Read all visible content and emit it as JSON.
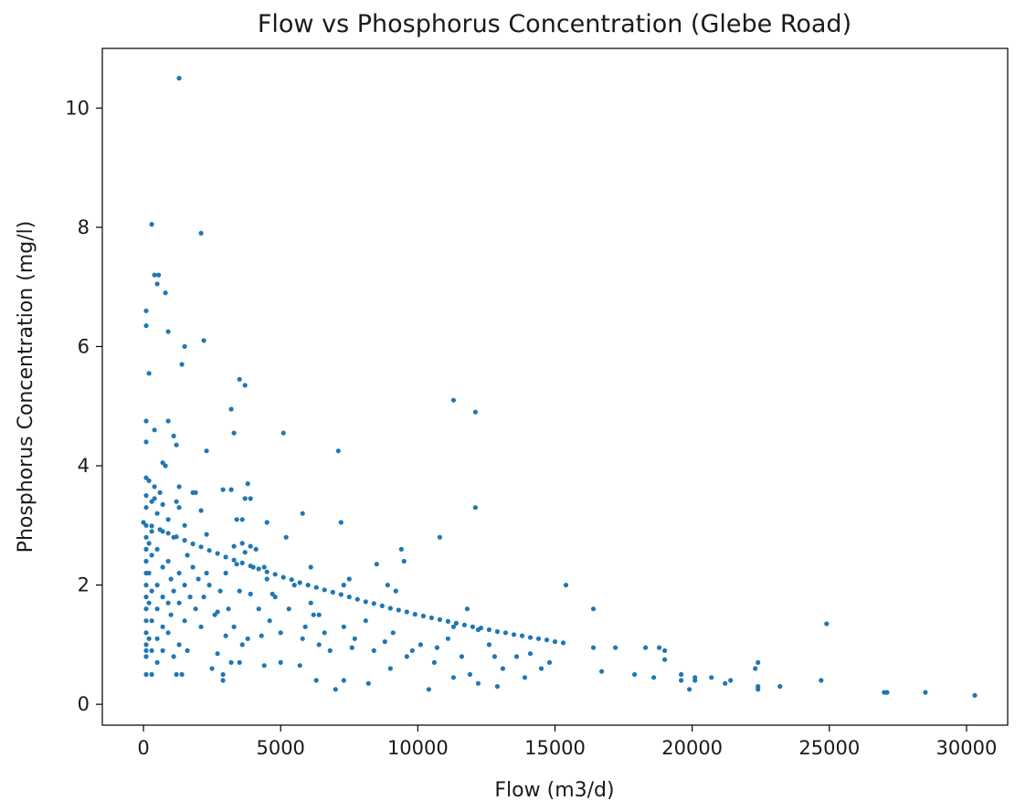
{
  "chart_data": {
    "type": "scatter",
    "title": "Flow vs Phosphorus Concentration (Glebe Road)",
    "xlabel": "Flow (m3/d)",
    "ylabel": "Phosphorus Concentration (mg/l)",
    "xlim": [
      -1500,
      31500
    ],
    "ylim": [
      -0.35,
      11.0
    ],
    "xticks": [
      0,
      5000,
      10000,
      15000,
      20000,
      25000,
      30000
    ],
    "yticks": [
      0,
      2,
      4,
      6,
      8,
      10
    ],
    "grid": false,
    "marker_color": "#1f77b4",
    "series": [
      {
        "points": [
          [
            1300,
            10.5
          ],
          [
            300,
            8.05
          ],
          [
            2100,
            7.9
          ],
          [
            400,
            7.2
          ],
          [
            550,
            7.2
          ],
          [
            500,
            7.05
          ],
          [
            800,
            6.9
          ],
          [
            100,
            6.6
          ],
          [
            100,
            6.35
          ],
          [
            900,
            6.25
          ],
          [
            2200,
            6.1
          ],
          [
            1500,
            6.0
          ],
          [
            1400,
            5.7
          ],
          [
            200,
            5.55
          ],
          [
            3500,
            5.45
          ],
          [
            3700,
            5.35
          ],
          [
            11300,
            5.1
          ],
          [
            3200,
            4.95
          ],
          [
            12100,
            4.9
          ],
          [
            900,
            4.75
          ],
          [
            100,
            4.75
          ],
          [
            400,
            4.6
          ],
          [
            1100,
            4.5
          ],
          [
            3300,
            4.55
          ],
          [
            5100,
            4.55
          ],
          [
            1200,
            4.35
          ],
          [
            100,
            4.4
          ],
          [
            7100,
            4.25
          ],
          [
            2300,
            4.25
          ],
          [
            700,
            4.05
          ],
          [
            800,
            4.0
          ],
          [
            100,
            3.8
          ],
          [
            200,
            3.75
          ],
          [
            3800,
            3.7
          ],
          [
            400,
            3.65
          ],
          [
            1300,
            3.65
          ],
          [
            2900,
            3.6
          ],
          [
            3200,
            3.6
          ],
          [
            600,
            3.55
          ],
          [
            1800,
            3.55
          ],
          [
            1900,
            3.55
          ],
          [
            100,
            3.5
          ],
          [
            400,
            3.45
          ],
          [
            1200,
            3.4
          ],
          [
            3700,
            3.45
          ],
          [
            3900,
            3.45
          ],
          [
            700,
            3.35
          ],
          [
            12100,
            3.3
          ],
          [
            100,
            3.3
          ],
          [
            2100,
            3.25
          ],
          [
            5800,
            3.2
          ],
          [
            3400,
            3.1
          ],
          [
            3600,
            3.1
          ],
          [
            7200,
            3.05
          ],
          [
            1500,
            3.0
          ],
          [
            4500,
            3.05
          ],
          [
            2300,
            2.85
          ],
          [
            10800,
            2.8
          ],
          [
            5200,
            2.8
          ],
          [
            3300,
            2.65
          ],
          [
            3900,
            2.65
          ],
          [
            4100,
            2.6
          ],
          [
            9400,
            2.6
          ],
          [
            3700,
            2.55
          ],
          [
            9500,
            2.4
          ],
          [
            8500,
            2.35
          ],
          [
            3400,
            2.35
          ],
          [
            4000,
            2.3
          ],
          [
            2300,
            2.2
          ],
          [
            6100,
            2.3
          ],
          [
            4500,
            2.1
          ],
          [
            7500,
            2.1
          ],
          [
            7300,
            2.0
          ],
          [
            8900,
            2.0
          ],
          [
            9200,
            1.9
          ],
          [
            15400,
            2.0
          ],
          [
            3900,
            1.85
          ],
          [
            4700,
            1.85
          ],
          [
            11800,
            1.6
          ],
          [
            2700,
            1.55
          ],
          [
            6200,
            1.5
          ],
          [
            6400,
            1.5
          ],
          [
            7300,
            1.3
          ],
          [
            16400,
            1.6
          ],
          [
            24900,
            1.35
          ],
          [
            11300,
            1.3
          ],
          [
            12200,
            1.25
          ],
          [
            4300,
            1.15
          ],
          [
            3000,
            1.15
          ],
          [
            5800,
            1.1
          ],
          [
            8800,
            1.05
          ],
          [
            11100,
            1.1
          ],
          [
            10700,
            0.95
          ],
          [
            6400,
            1.0
          ],
          [
            7600,
            0.95
          ],
          [
            9800,
            0.9
          ],
          [
            2700,
            0.85
          ],
          [
            3600,
            1.0
          ],
          [
            16400,
            0.95
          ],
          [
            17200,
            0.95
          ],
          [
            18300,
            0.95
          ],
          [
            18800,
            0.95
          ],
          [
            19000,
            0.9
          ],
          [
            19000,
            0.75
          ],
          [
            13600,
            0.8
          ],
          [
            14100,
            0.85
          ],
          [
            12800,
            0.8
          ],
          [
            11900,
            0.5
          ],
          [
            11300,
            0.45
          ],
          [
            12200,
            0.35
          ],
          [
            10400,
            0.25
          ],
          [
            9000,
            0.6
          ],
          [
            8200,
            0.35
          ],
          [
            7000,
            0.25
          ],
          [
            7300,
            0.4
          ],
          [
            6300,
            0.4
          ],
          [
            5700,
            0.65
          ],
          [
            5000,
            0.7
          ],
          [
            4400,
            0.65
          ],
          [
            3200,
            0.7
          ],
          [
            3500,
            0.7
          ],
          [
            2900,
            0.5
          ],
          [
            2900,
            0.4
          ],
          [
            2500,
            0.6
          ],
          [
            1400,
            0.5
          ],
          [
            1200,
            0.5
          ],
          [
            300,
            0.5
          ],
          [
            100,
            0.5
          ],
          [
            16700,
            0.55
          ],
          [
            17900,
            0.5
          ],
          [
            18600,
            0.45
          ],
          [
            19600,
            0.5
          ],
          [
            19600,
            0.4
          ],
          [
            19900,
            0.25
          ],
          [
            20100,
            0.4
          ],
          [
            20100,
            0.45
          ],
          [
            20700,
            0.45
          ],
          [
            21200,
            0.35
          ],
          [
            21400,
            0.4
          ],
          [
            22300,
            0.6
          ],
          [
            22400,
            0.7
          ],
          [
            22400,
            0.3
          ],
          [
            22400,
            0.25
          ],
          [
            23200,
            0.3
          ],
          [
            24700,
            0.4
          ],
          [
            27000,
            0.2
          ],
          [
            27100,
            0.2
          ],
          [
            28500,
            0.2
          ],
          [
            30300,
            0.15
          ],
          [
            12900,
            0.3
          ],
          [
            13900,
            0.45
          ],
          [
            14800,
            0.7
          ],
          [
            100,
            3.0
          ],
          [
            100,
            2.8
          ],
          [
            100,
            2.6
          ],
          [
            100,
            2.4
          ],
          [
            100,
            2.2
          ],
          [
            100,
            2.0
          ],
          [
            100,
            1.8
          ],
          [
            100,
            1.6
          ],
          [
            100,
            1.4
          ],
          [
            100,
            1.2
          ],
          [
            100,
            1.0
          ],
          [
            100,
            0.9
          ],
          [
            100,
            0.8
          ],
          [
            200,
            2.7
          ],
          [
            200,
            2.2
          ],
          [
            200,
            1.7
          ],
          [
            200,
            1.1
          ],
          [
            300,
            3.4
          ],
          [
            300,
            2.9
          ],
          [
            300,
            2.5
          ],
          [
            300,
            1.9
          ],
          [
            300,
            1.4
          ],
          [
            300,
            0.9
          ],
          [
            500,
            3.2
          ],
          [
            500,
            2.6
          ],
          [
            500,
            2.0
          ],
          [
            500,
            1.6
          ],
          [
            500,
            1.1
          ],
          [
            500,
            0.7
          ],
          [
            700,
            2.9
          ],
          [
            700,
            2.3
          ],
          [
            700,
            1.8
          ],
          [
            700,
            1.3
          ],
          [
            700,
            0.9
          ],
          [
            900,
            3.1
          ],
          [
            900,
            2.4
          ],
          [
            900,
            1.7
          ],
          [
            900,
            1.2
          ],
          [
            1000,
            2.1
          ],
          [
            1000,
            1.5
          ],
          [
            1100,
            2.8
          ],
          [
            1100,
            1.9
          ],
          [
            1100,
            0.8
          ],
          [
            1300,
            3.3
          ],
          [
            1300,
            2.2
          ],
          [
            1300,
            1.7
          ],
          [
            1300,
            1.0
          ],
          [
            1500,
            2.0
          ],
          [
            1500,
            1.4
          ],
          [
            1600,
            2.5
          ],
          [
            1600,
            0.9
          ],
          [
            1700,
            1.8
          ],
          [
            1800,
            2.3
          ],
          [
            1900,
            1.6
          ],
          [
            2000,
            2.1
          ],
          [
            2100,
            1.3
          ],
          [
            2200,
            1.8
          ],
          [
            2400,
            2.0
          ],
          [
            2600,
            1.5
          ],
          [
            2800,
            1.9
          ],
          [
            3000,
            2.2
          ],
          [
            3100,
            1.6
          ],
          [
            3300,
            1.3
          ],
          [
            3500,
            1.9
          ],
          [
            3600,
            2.7
          ],
          [
            3800,
            1.1
          ],
          [
            4200,
            1.6
          ],
          [
            4400,
            2.3
          ],
          [
            4600,
            1.4
          ],
          [
            4800,
            1.8
          ],
          [
            5000,
            1.2
          ],
          [
            5300,
            1.6
          ],
          [
            5500,
            2.0
          ],
          [
            5900,
            1.3
          ],
          [
            6100,
            1.7
          ],
          [
            6600,
            1.2
          ],
          [
            6800,
            0.9
          ],
          [
            7700,
            1.1
          ],
          [
            8100,
            1.4
          ],
          [
            8400,
            0.9
          ],
          [
            9100,
            1.2
          ],
          [
            9600,
            0.8
          ],
          [
            10100,
            1.0
          ],
          [
            10600,
            0.7
          ],
          [
            11600,
            0.8
          ],
          [
            12600,
            1.0
          ],
          [
            13100,
            0.6
          ],
          [
            14500,
            0.6
          ]
        ]
      },
      {
        "points": [
          [
            0,
            3.05
          ],
          [
            300,
            2.99
          ],
          [
            600,
            2.93
          ],
          [
            900,
            2.87
          ],
          [
            1200,
            2.81
          ],
          [
            1500,
            2.75
          ],
          [
            1800,
            2.69
          ],
          [
            2100,
            2.64
          ],
          [
            2400,
            2.58
          ],
          [
            2700,
            2.53
          ],
          [
            3000,
            2.47
          ],
          [
            3300,
            2.42
          ],
          [
            3600,
            2.37
          ],
          [
            3900,
            2.32
          ],
          [
            4200,
            2.27
          ],
          [
            4500,
            2.22
          ],
          [
            4800,
            2.18
          ],
          [
            5100,
            2.13
          ],
          [
            5400,
            2.09
          ],
          [
            5700,
            2.04
          ],
          [
            6000,
            2.0
          ],
          [
            6300,
            1.96
          ],
          [
            6600,
            1.92
          ],
          [
            6900,
            1.88
          ],
          [
            7200,
            1.84
          ],
          [
            7500,
            1.8
          ],
          [
            7800,
            1.76
          ],
          [
            8100,
            1.72
          ],
          [
            8400,
            1.69
          ],
          [
            8700,
            1.65
          ],
          [
            9000,
            1.61
          ],
          [
            9300,
            1.58
          ],
          [
            9600,
            1.55
          ],
          [
            9900,
            1.51
          ],
          [
            10200,
            1.48
          ],
          [
            10500,
            1.45
          ],
          [
            10800,
            1.42
          ],
          [
            11100,
            1.39
          ],
          [
            11400,
            1.36
          ],
          [
            11700,
            1.33
          ],
          [
            12000,
            1.3
          ],
          [
            12300,
            1.28
          ],
          [
            12600,
            1.25
          ],
          [
            12900,
            1.22
          ],
          [
            13200,
            1.2
          ],
          [
            13500,
            1.17
          ],
          [
            13800,
            1.15
          ],
          [
            14100,
            1.12
          ],
          [
            14400,
            1.1
          ],
          [
            14700,
            1.08
          ],
          [
            15000,
            1.05
          ],
          [
            15300,
            1.03
          ]
        ]
      }
    ]
  }
}
